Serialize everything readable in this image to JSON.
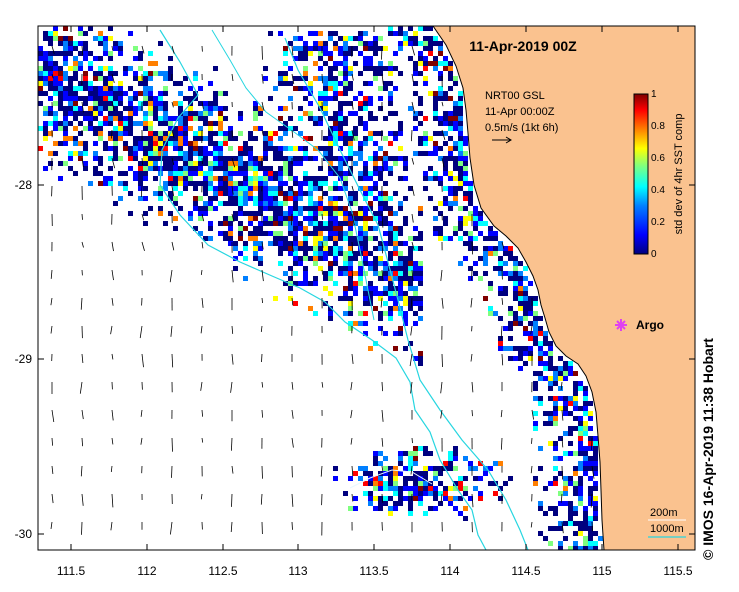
{
  "map": {
    "title": "11-Apr-2019 00Z",
    "lon_ticks": [
      "111.5",
      "112",
      "112.5",
      "113",
      "113.5",
      "114",
      "114.5",
      "115",
      "115.5"
    ],
    "lat_ticks": [
      "-28",
      "-29",
      "-30"
    ],
    "lon_range": [
      111.3,
      115.6
    ],
    "lat_range": [
      -30.1,
      -27.1
    ],
    "info_lines": [
      "NRT00 GSL",
      "11-Apr 00:00Z",
      "0.5m/s (1kt 6h)"
    ],
    "float_label": "Argo",
    "float_color": "#e040f0",
    "land_color": "#fac28f",
    "coastline_color": "#000000",
    "contour_color": "#27d6e0",
    "contour_labels": [
      "200m",
      "1000m"
    ],
    "credit": "© IMOS 16-Apr-2019 11:38 Hobart"
  },
  "colorbar": {
    "label": "std dev of 4hr SST comp",
    "ticks": [
      "0",
      "0.2",
      "0.4",
      "0.6",
      "0.8",
      "1"
    ],
    "colors": [
      "#00007f",
      "#0000ff",
      "#007fff",
      "#00ffff",
      "#7fff7f",
      "#ffff00",
      "#ff7f00",
      "#ff0000",
      "#7f0000"
    ]
  }
}
